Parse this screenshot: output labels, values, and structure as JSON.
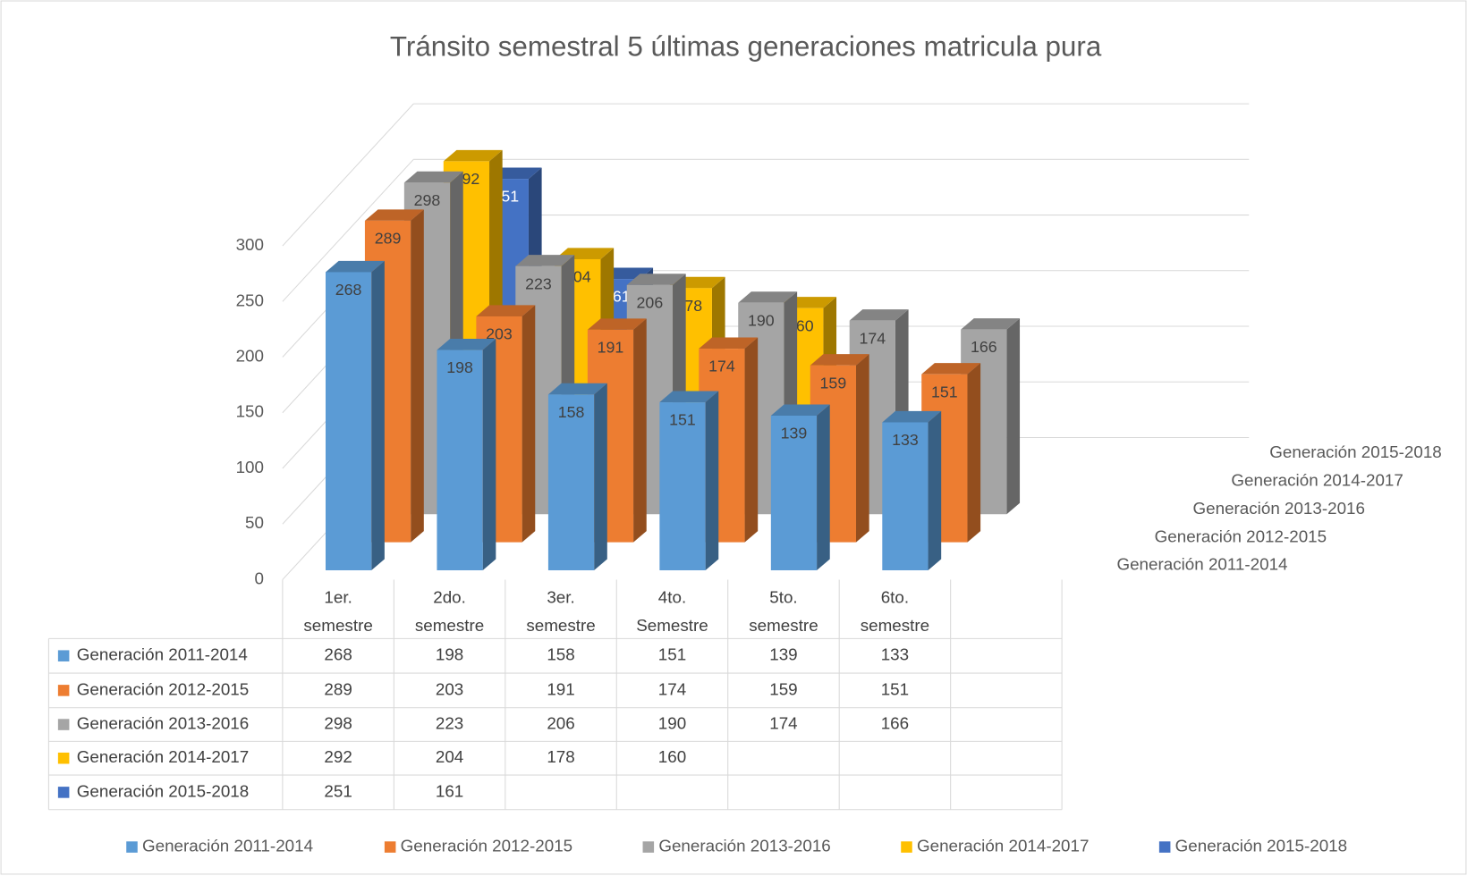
{
  "chart_data": {
    "type": "bar",
    "title": "Tránsito semestral 5 últimas generaciones matricula pura",
    "categories": [
      "1er. semestre",
      "2do. semestre",
      "3er. semestre",
      "4to. Semestre",
      "5to. semestre",
      "6to. semestre",
      null
    ],
    "series": [
      {
        "name": "Generación 2011-2014",
        "color": "#5b9bd5",
        "values": [
          268,
          198,
          158,
          151,
          139,
          133,
          null
        ]
      },
      {
        "name": "Generación 2012-2015",
        "color": "#ed7d31",
        "values": [
          289,
          203,
          191,
          174,
          159,
          151,
          null
        ]
      },
      {
        "name": "Generación 2013-2016",
        "color": "#a5a5a5",
        "values": [
          298,
          223,
          206,
          190,
          174,
          166,
          null
        ]
      },
      {
        "name": "Generación 2014-2017",
        "color": "#ffc000",
        "values": [
          292,
          204,
          178,
          160,
          null,
          null,
          null
        ]
      },
      {
        "name": "Generación 2015-2018",
        "color": "#4472c4",
        "values": [
          251,
          161,
          null,
          null,
          null,
          null,
          null
        ]
      }
    ],
    "ylim": [
      0,
      300
    ],
    "yticks": [
      0,
      50,
      100,
      150,
      200,
      250,
      300
    ],
    "grid": true,
    "data_table": true,
    "legend": "bottom"
  }
}
